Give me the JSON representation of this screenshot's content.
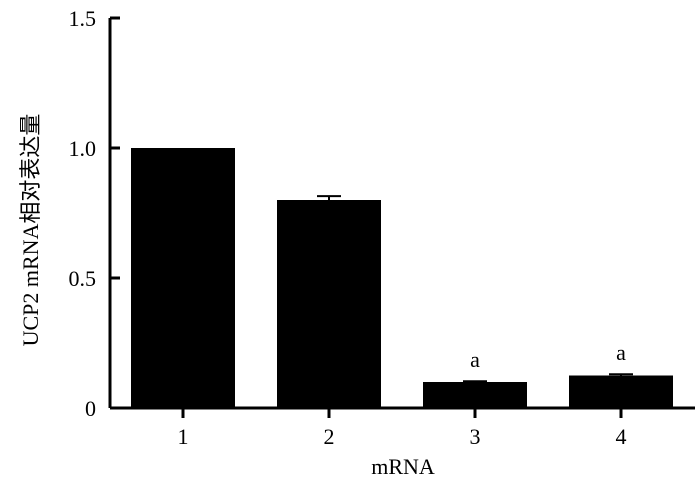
{
  "chart_data": {
    "type": "bar",
    "title": "",
    "xlabel": "mRNA",
    "ylabel": "UCP2 mRNA相对表达量",
    "categories": [
      "1",
      "2",
      "3",
      "4"
    ],
    "values": [
      1.0,
      0.8,
      0.1,
      0.125
    ],
    "errors": [
      0.0,
      0.015,
      0.003,
      0.005
    ],
    "annotations": [
      "",
      "",
      "a",
      "a"
    ],
    "ylim": [
      0,
      1.5
    ],
    "yticks": [
      {
        "value": 0,
        "label": "0"
      },
      {
        "value": 0.5,
        "label": "0.5"
      },
      {
        "value": 1.0,
        "label": "1.0"
      },
      {
        "value": 1.5,
        "label": "1.5"
      }
    ],
    "grid": false,
    "legend": "none",
    "bar_color": "#000000"
  }
}
